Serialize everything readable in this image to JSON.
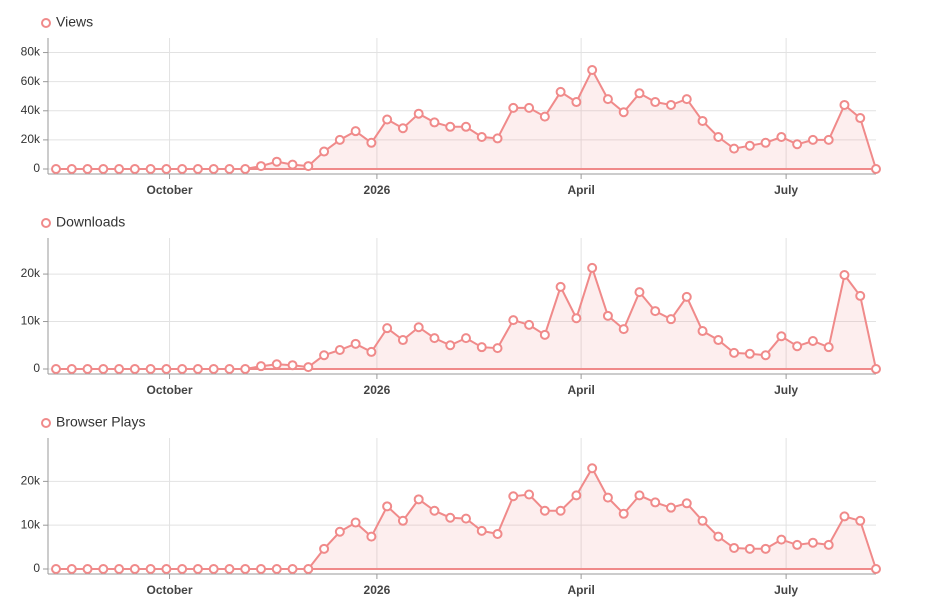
{
  "chart_data": [
    {
      "type": "area",
      "title": "Views",
      "color": "#f08a8a",
      "x": [
        0,
        1,
        2,
        3,
        4,
        5,
        6,
        7,
        8,
        9,
        10,
        11,
        12,
        13,
        14,
        15,
        16,
        17,
        18,
        19,
        20,
        21,
        22,
        23,
        24,
        25,
        26,
        27,
        28,
        29,
        30,
        31,
        32,
        33,
        34,
        35,
        36,
        37,
        38,
        39,
        40,
        41,
        42,
        43,
        44,
        45,
        46,
        47,
        48,
        49,
        50,
        51,
        52
      ],
      "values": [
        0,
        0,
        0,
        0,
        0,
        0,
        0,
        0,
        0,
        0,
        0,
        0,
        0,
        2000,
        5000,
        3000,
        2000,
        12000,
        20000,
        26000,
        18000,
        34000,
        28000,
        38000,
        32000,
        29000,
        29000,
        22000,
        21000,
        42000,
        42000,
        36000,
        53000,
        46000,
        68000,
        48000,
        39000,
        52000,
        46000,
        44000,
        48000,
        33000,
        22000,
        14000,
        16000,
        18000,
        22000,
        17000,
        20000,
        20000,
        44000,
        35000,
        0
      ],
      "xlim": [
        0,
        52
      ],
      "xticks": [
        {
          "value": 7.2,
          "label": "October"
        },
        {
          "value": 20.35,
          "label": "2026"
        },
        {
          "value": 33.3,
          "label": "April"
        },
        {
          "value": 46.3,
          "label": "July"
        }
      ],
      "ylim": [
        0,
        90000
      ],
      "yticks": [
        {
          "value": 0,
          "label": "0"
        },
        {
          "value": 20000,
          "label": "20k"
        },
        {
          "value": 40000,
          "label": "40k"
        },
        {
          "value": 60000,
          "label": "60k"
        },
        {
          "value": 80000,
          "label": "80k"
        }
      ],
      "grid": true
    },
    {
      "type": "area",
      "title": "Downloads",
      "color": "#f08a8a",
      "x": [
        0,
        1,
        2,
        3,
        4,
        5,
        6,
        7,
        8,
        9,
        10,
        11,
        12,
        13,
        14,
        15,
        16,
        17,
        18,
        19,
        20,
        21,
        22,
        23,
        24,
        25,
        26,
        27,
        28,
        29,
        30,
        31,
        32,
        33,
        34,
        35,
        36,
        37,
        38,
        39,
        40,
        41,
        42,
        43,
        44,
        45,
        46,
        47,
        48,
        49,
        50,
        51,
        52
      ],
      "values": [
        0,
        0,
        0,
        0,
        0,
        0,
        0,
        0,
        0,
        0,
        0,
        0,
        0,
        600,
        1000,
        800,
        400,
        2900,
        4000,
        5300,
        3600,
        8600,
        6100,
        8800,
        6500,
        5000,
        6500,
        4600,
        4400,
        10300,
        9300,
        7200,
        17300,
        10700,
        21300,
        11200,
        8400,
        16200,
        12200,
        10500,
        15200,
        8000,
        6100,
        3400,
        3200,
        2900,
        6900,
        4800,
        5900,
        4600,
        19800,
        15400,
        0
      ],
      "xlim": [
        0,
        52
      ],
      "xticks": [
        {
          "value": 7.2,
          "label": "October"
        },
        {
          "value": 20.35,
          "label": "2026"
        },
        {
          "value": 33.3,
          "label": "April"
        },
        {
          "value": 46.3,
          "label": "July"
        }
      ],
      "ylim": [
        0,
        27600
      ],
      "yticks": [
        {
          "value": 0,
          "label": "0"
        },
        {
          "value": 10000,
          "label": "10k"
        },
        {
          "value": 20000,
          "label": "20k"
        }
      ],
      "grid": true
    },
    {
      "type": "area",
      "title": "Browser Plays",
      "color": "#f08a8a",
      "x": [
        0,
        1,
        2,
        3,
        4,
        5,
        6,
        7,
        8,
        9,
        10,
        11,
        12,
        13,
        14,
        15,
        16,
        17,
        18,
        19,
        20,
        21,
        22,
        23,
        24,
        25,
        26,
        27,
        28,
        29,
        30,
        31,
        32,
        33,
        34,
        35,
        36,
        37,
        38,
        39,
        40,
        41,
        42,
        43,
        44,
        45,
        46,
        47,
        48,
        49,
        50,
        51,
        52
      ],
      "values": [
        0,
        0,
        0,
        0,
        0,
        0,
        0,
        0,
        0,
        0,
        0,
        0,
        0,
        0,
        0,
        0,
        0,
        4600,
        8500,
        10600,
        7400,
        14300,
        11000,
        15900,
        13300,
        11700,
        11500,
        8700,
        8000,
        16600,
        17000,
        13300,
        13300,
        16800,
        23000,
        16300,
        12600,
        16800,
        15200,
        14000,
        15000,
        11000,
        7400,
        4800,
        4600,
        4600,
        6700,
        5500,
        6000,
        5500,
        12000,
        11000,
        0
      ],
      "xlim": [
        0,
        52
      ],
      "xticks": [
        {
          "value": 7.2,
          "label": "October"
        },
        {
          "value": 20.35,
          "label": "2026"
        },
        {
          "value": 33.3,
          "label": "April"
        },
        {
          "value": 46.3,
          "label": "July"
        }
      ],
      "ylim": [
        0,
        29900
      ],
      "yticks": [
        {
          "value": 0,
          "label": "0"
        },
        {
          "value": 10000,
          "label": "10k"
        },
        {
          "value": 20000,
          "label": "20k"
        }
      ],
      "grid": true
    }
  ]
}
